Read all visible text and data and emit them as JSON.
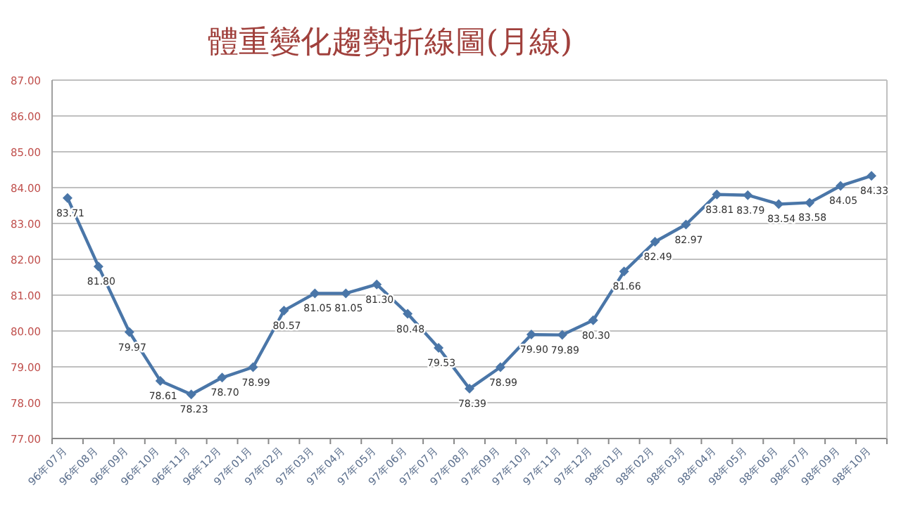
{
  "chart_data": {
    "type": "line",
    "title": "體重變化趨勢折線圖(月線)",
    "categories": [
      "96年07月",
      "96年08月",
      "96年09月",
      "96年10月",
      "96年11月",
      "96年12月",
      "97年01月",
      "97年02月",
      "97年03月",
      "97年04月",
      "97年05月",
      "97年06月",
      "97年07月",
      "97年08月",
      "97年09月",
      "97年10月",
      "97年11月",
      "97年12月",
      "98年01月",
      "98年02月",
      "98年03月",
      "98年04月",
      "98年05月",
      "98年06月",
      "98年07月",
      "98年09月",
      "98年10月"
    ],
    "series": [
      {
        "color": "#4a76a8",
        "values": [
          83.71,
          81.8,
          79.97,
          78.61,
          78.23,
          78.7,
          78.99,
          80.57,
          81.05,
          81.05,
          81.3,
          80.48,
          79.53,
          78.39,
          78.99,
          79.9,
          79.89,
          80.3,
          81.66,
          82.49,
          82.97,
          83.81,
          83.79,
          83.54,
          83.58,
          84.05,
          84.33
        ],
        "value_labels": [
          "83.71",
          "81.80",
          "79.97",
          "78.61",
          "78.23",
          "78.70",
          "78.99",
          "80.57",
          "81.05",
          "81.05",
          "81.30",
          "80.48",
          "79.53",
          "78.39",
          "78.99",
          "79.90",
          "79.89",
          "80.30",
          "81.66",
          "82.49",
          "82.97",
          "83.81",
          "83.79",
          "83.54",
          "83.58",
          "84.05",
          "84.33"
        ]
      }
    ],
    "ylim": [
      77,
      87
    ],
    "yticks": [
      {
        "value": 77,
        "label": "77.00"
      },
      {
        "value": 78,
        "label": "78.00"
      },
      {
        "value": 79,
        "label": "79.00"
      },
      {
        "value": 80,
        "label": "80.00"
      },
      {
        "value": 81,
        "label": "81.00"
      },
      {
        "value": 82,
        "label": "82.00"
      },
      {
        "value": 83,
        "label": "83.00"
      },
      {
        "value": 84,
        "label": "84.00"
      },
      {
        "value": 85,
        "label": "85.00"
      },
      {
        "value": 86,
        "label": "86.00"
      },
      {
        "value": 87,
        "label": "87.00"
      }
    ],
    "grid": "y",
    "marker": "diamond",
    "line_style": "solid"
  }
}
